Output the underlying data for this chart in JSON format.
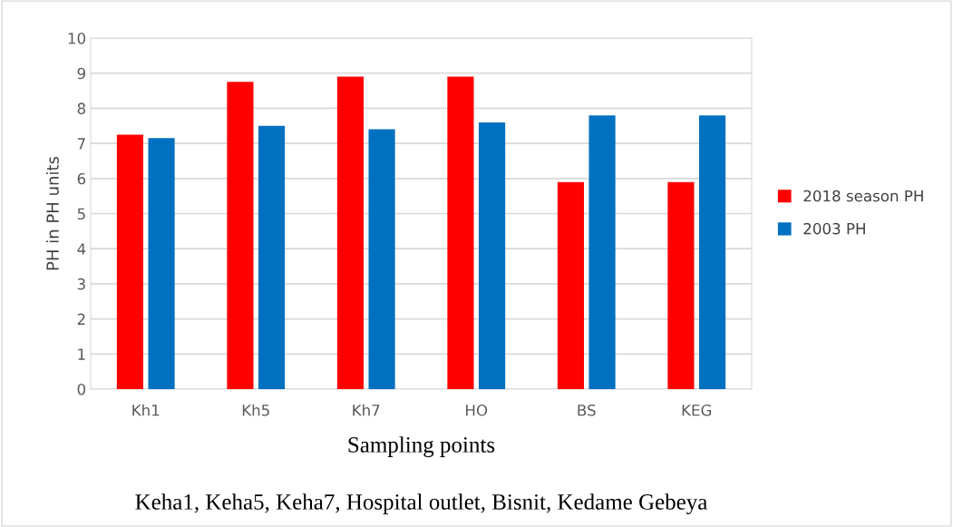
{
  "chart_data": {
    "type": "bar",
    "xlabel": "Sampling points",
    "ylabel": "PH in PH units",
    "categories": [
      "Kh1",
      "Kh5",
      "Kh7",
      "HO",
      "BS",
      "KEG"
    ],
    "series": [
      {
        "name": "2018 season PH",
        "color": "#ff0000",
        "values": [
          7.25,
          8.75,
          8.9,
          8.9,
          5.9,
          5.9
        ]
      },
      {
        "name": "2003 PH",
        "color": "#0070c0",
        "values": [
          7.15,
          7.5,
          7.4,
          7.6,
          7.8,
          7.8
        ]
      }
    ],
    "ylim": [
      0,
      10
    ],
    "yticks": [
      0,
      1,
      2,
      3,
      4,
      5,
      6,
      7,
      8,
      9,
      10
    ],
    "grid": "y",
    "legend": "right",
    "annotations": [
      "Keha1, Keha5, Keha7, Hospital outlet, Bisnit, Kedame Gebeya"
    ]
  }
}
